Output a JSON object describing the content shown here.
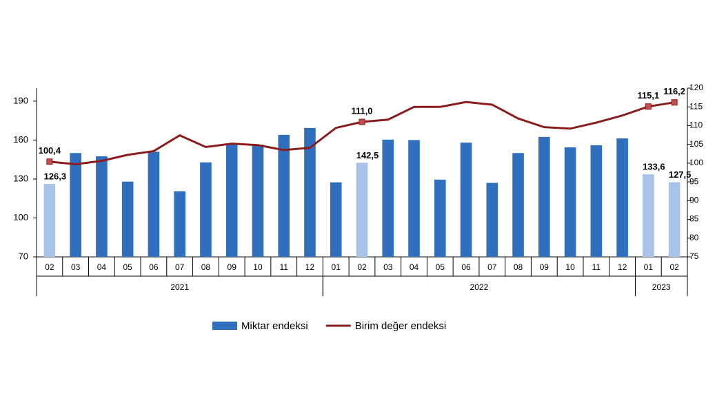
{
  "chart_data": {
    "type": "bar-line",
    "categories": [
      "02",
      "03",
      "04",
      "05",
      "06",
      "07",
      "08",
      "09",
      "10",
      "11",
      "12",
      "01",
      "02",
      "03",
      "04",
      "05",
      "06",
      "07",
      "08",
      "09",
      "10",
      "11",
      "12",
      "01",
      "02"
    ],
    "x_groups": [
      {
        "label": "2021",
        "count": 11
      },
      {
        "label": "2022",
        "count": 12
      },
      {
        "label": "2023",
        "count": 2
      }
    ],
    "series": [
      {
        "name": "Miktar endeksi",
        "type": "bar",
        "color": "#2f6fbd",
        "colors": [
          "#a9c2e8",
          "#2f6fbd",
          "#2f6fbd",
          "#2f6fbd",
          "#2f6fbd",
          "#2f6fbd",
          "#2f6fbd",
          "#2f6fbd",
          "#2f6fbd",
          "#2f6fbd",
          "#2f6fbd",
          "#2f6fbd",
          "#a9c2e8",
          "#2f6fbd",
          "#2f6fbd",
          "#2f6fbd",
          "#2f6fbd",
          "#2f6fbd",
          "#2f6fbd",
          "#2f6fbd",
          "#2f6fbd",
          "#2f6fbd",
          "#2f6fbd",
          "#a9c2e8",
          "#a9c2e8"
        ],
        "values": [
          126.3,
          150,
          147.5,
          128,
          151,
          120.5,
          142.8,
          157,
          156.5,
          164,
          169.3,
          127.4,
          142.5,
          160.3,
          160,
          129.5,
          158,
          127,
          150,
          162.4,
          154.4,
          156,
          161.3,
          133.6,
          127.5
        ],
        "value_labels": [
          "126,3",
          null,
          null,
          null,
          null,
          null,
          null,
          null,
          null,
          null,
          null,
          null,
          "142,5",
          null,
          null,
          null,
          null,
          null,
          null,
          null,
          null,
          null,
          null,
          "133,6",
          "127,5"
        ]
      },
      {
        "name": "Birim değer endeksi",
        "type": "line",
        "axis": "y2",
        "color": "#8b1c1c",
        "values": [
          100.4,
          99.7,
          100.6,
          102.2,
          103.2,
          107.4,
          104.3,
          105.2,
          104.8,
          103.5,
          104.1,
          109.4,
          111.0,
          111.6,
          115,
          115,
          116.3,
          115.6,
          111.9,
          109.6,
          109.2,
          110.8,
          112.7,
          115.1,
          116.2
        ],
        "value_labels": [
          "100,4",
          null,
          null,
          null,
          null,
          null,
          null,
          null,
          null,
          null,
          null,
          null,
          "111,0",
          null,
          null,
          null,
          null,
          null,
          null,
          null,
          null,
          null,
          null,
          "115,1",
          "116,2"
        ]
      }
    ],
    "ylim": [
      70,
      200
    ],
    "yticks": [
      70,
      100,
      130,
      160,
      190
    ],
    "y2lim": [
      75,
      120
    ],
    "y2ticks": [
      75,
      80,
      85,
      90,
      95,
      100,
      105,
      110,
      115,
      120
    ],
    "legend": "bottom"
  }
}
